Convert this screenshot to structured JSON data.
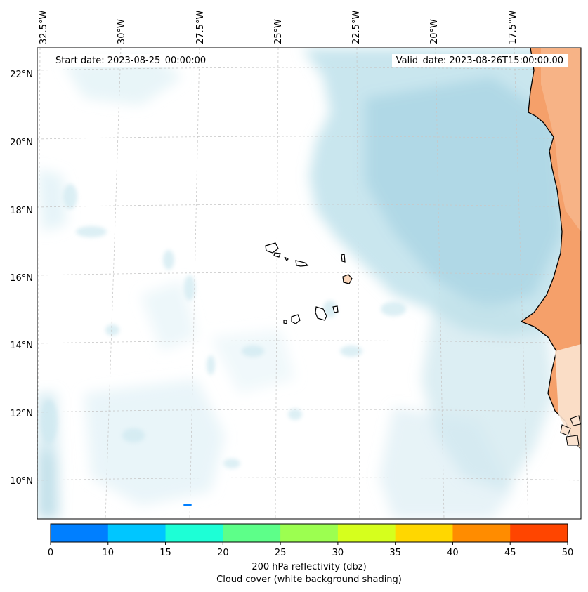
{
  "map": {
    "start_date": "Start date: 2023-08-25_00:00:00",
    "valid_date": "Valid_date: 2023-08-26T15:00:00.00",
    "longitude_labels": [
      "32.5°W",
      "30°W",
      "27.5°W",
      "25°W",
      "22.5°W",
      "20°W",
      "17.5°W"
    ],
    "latitude_labels": [
      "22°N",
      "20°N",
      "18°N",
      "16°N",
      "14°N",
      "12°N",
      "10°N"
    ],
    "gridlines": true,
    "colors": {
      "cloud_cover": "#a9d7e4",
      "land_temperature": "#f19a5c",
      "coastline": "#000000",
      "gridline": "#c8c8c8"
    }
  },
  "colorbar": {
    "ticks": [
      "0",
      "10",
      "15",
      "20",
      "25",
      "30",
      "35",
      "40",
      "45",
      "50"
    ],
    "colors": [
      "#007fff",
      "#00c6ff",
      "#1dffd6",
      "#5dff89",
      "#9cff50",
      "#d6ff1d",
      "#ffd700",
      "#ff8c00",
      "#ff4500"
    ],
    "label_line1": "200 hPa reflectivity (dbz)",
    "label_line2": "Cloud cover (white background shading)"
  }
}
